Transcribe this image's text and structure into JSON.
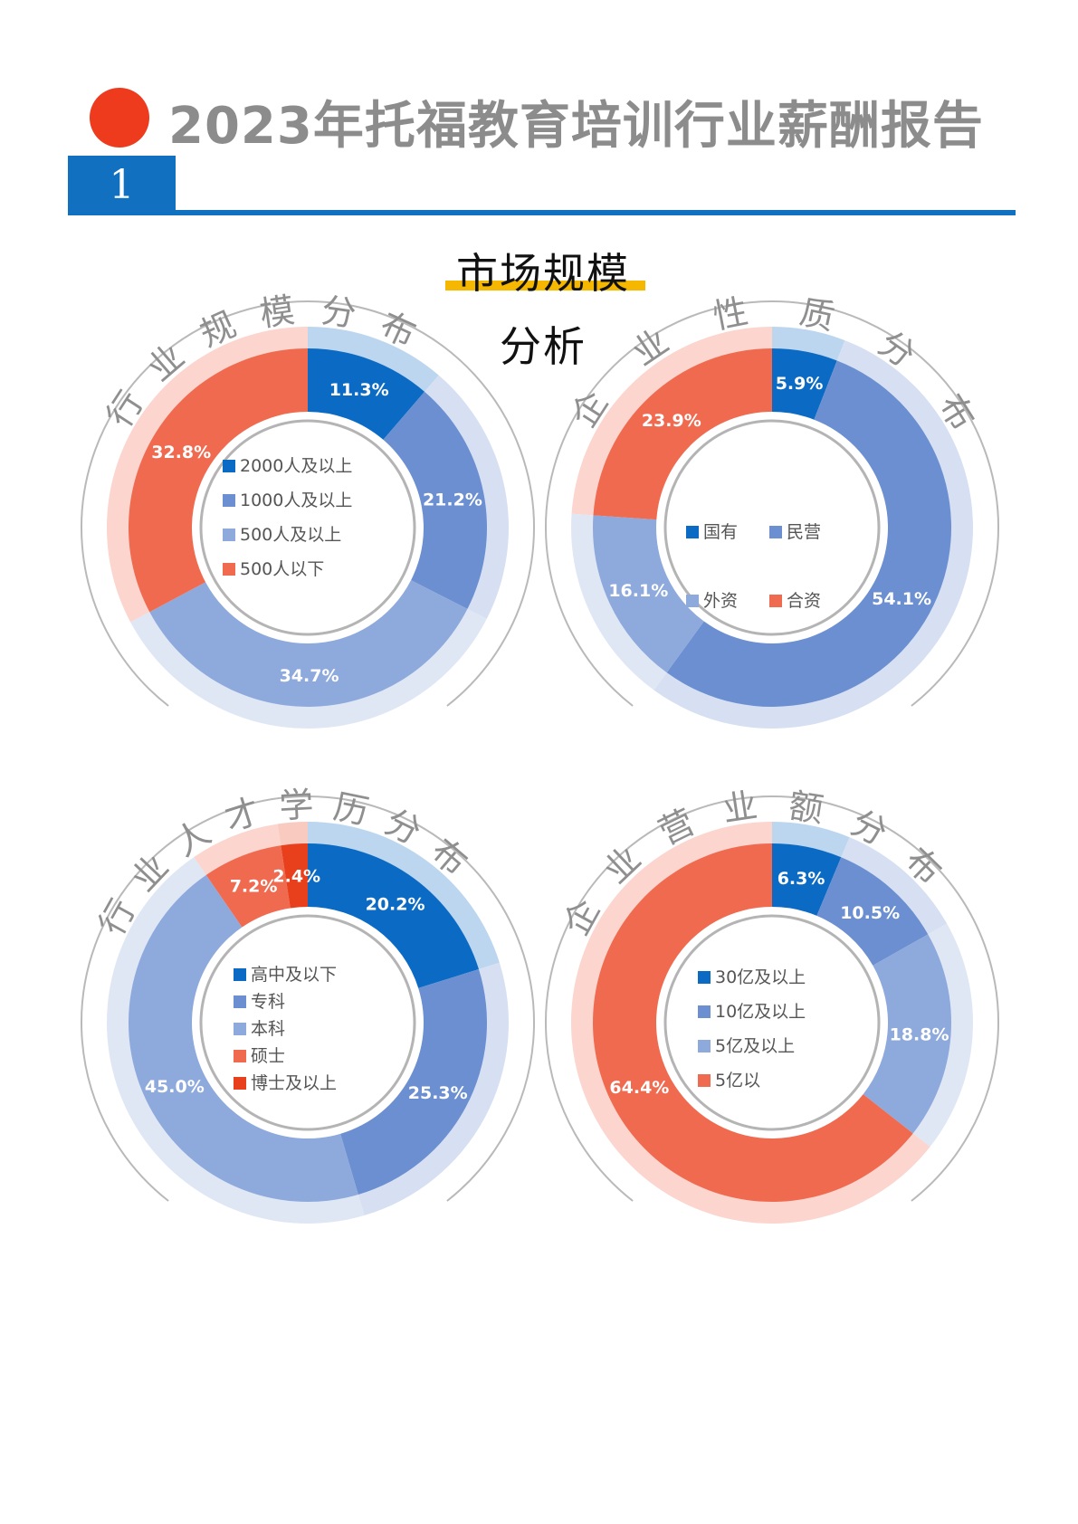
{
  "report": {
    "title": "2023年托福教育培训行业薪酬报告",
    "section_number": "1",
    "subtitle_line1": "市场规模",
    "subtitle_line2": "分析"
  },
  "colors": {
    "accent_red": "#ee3a1d",
    "header_blue": "#1270c0",
    "underline_yellow": "#f5b700",
    "title_gray": "#8c8c8c"
  },
  "chart_data": [
    {
      "type": "pie",
      "title": "行业规模分布",
      "categories": [
        "2000人及以上",
        "1000人及以上",
        "500人及以上",
        "500人以下"
      ],
      "values": [
        11.3,
        21.2,
        34.7,
        32.8
      ],
      "labels": [
        "11.3%",
        "21.2%",
        "34.7%",
        "32.8%"
      ],
      "colors": [
        "#0b6bc4",
        "#6b8fd0",
        "#8ea9dc",
        "#f06a4f"
      ],
      "legend": "center"
    },
    {
      "type": "pie",
      "title": "企业性质分布",
      "categories": [
        "国有",
        "民营",
        "外资",
        "合资"
      ],
      "values": [
        5.9,
        54.1,
        16.1,
        23.9
      ],
      "labels": [
        "5.9%",
        "54.1%",
        "16.1%",
        "23.9%"
      ],
      "colors": [
        "#0b6bc4",
        "#6b8fd0",
        "#8ea9dc",
        "#f06a4f"
      ],
      "legend": "center"
    },
    {
      "type": "pie",
      "title": "行业人才学历分布",
      "categories": [
        "高中及以下",
        "专科",
        "本科",
        "硕士",
        "博士及以上"
      ],
      "values": [
        20.2,
        25.3,
        45.0,
        7.2,
        2.4
      ],
      "labels": [
        "20.2%",
        "25.3%",
        "45.0%",
        "7.2%",
        "2.4%"
      ],
      "colors": [
        "#0b6bc4",
        "#6b8fd0",
        "#8ea9dc",
        "#f06a4f",
        "#e8401c"
      ],
      "legend": "center"
    },
    {
      "type": "pie",
      "title": "企业营业额分布",
      "categories": [
        "30亿及以上",
        "10亿及以上",
        "5亿及以上",
        "5亿以"
      ],
      "values": [
        6.3,
        10.5,
        18.8,
        64.4
      ],
      "labels": [
        "6.3%",
        "10.5%",
        "18.8%",
        "64.4%"
      ],
      "colors": [
        "#0b6bc4",
        "#6b8fd0",
        "#8ea9dc",
        "#f06a4f"
      ],
      "legend": "center"
    }
  ]
}
